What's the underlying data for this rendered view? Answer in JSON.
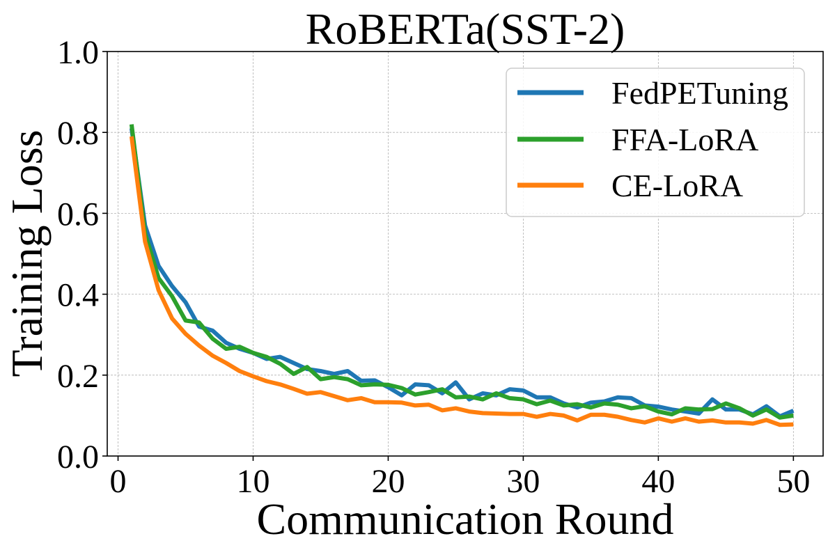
{
  "chart_data": {
    "type": "line",
    "title": "RoBERTa(SST-2)",
    "xlabel": "Communication Round",
    "ylabel": "Training Loss",
    "xlim": [
      -0.8,
      52.2
    ],
    "ylim": [
      0.0,
      1.0
    ],
    "xticks": [
      0,
      10,
      20,
      30,
      40,
      50
    ],
    "yticks": [
      0.0,
      0.2,
      0.4,
      0.6,
      0.8,
      1.0
    ],
    "xtick_labels": [
      "0",
      "10",
      "20",
      "30",
      "40",
      "50"
    ],
    "ytick_labels": [
      "0.0",
      "0.2",
      "0.4",
      "0.6",
      "0.8",
      "1.0"
    ],
    "grid": true,
    "legend_position": "top-right",
    "x": [
      1,
      2,
      3,
      4,
      5,
      6,
      7,
      8,
      9,
      10,
      11,
      12,
      13,
      14,
      15,
      16,
      17,
      18,
      19,
      20,
      21,
      22,
      23,
      24,
      25,
      26,
      27,
      28,
      29,
      30,
      31,
      32,
      33,
      34,
      35,
      36,
      37,
      38,
      39,
      40,
      41,
      42,
      43,
      44,
      45,
      46,
      47,
      48,
      49,
      50
    ],
    "series": [
      {
        "name": "FedPETuning",
        "color": "#1f77b4",
        "values": [
          0.81,
          0.57,
          0.47,
          0.42,
          0.38,
          0.32,
          0.31,
          0.28,
          0.265,
          0.255,
          0.24,
          0.245,
          0.23,
          0.215,
          0.21,
          0.203,
          0.21,
          0.186,
          0.187,
          0.17,
          0.15,
          0.177,
          0.175,
          0.155,
          0.182,
          0.14,
          0.155,
          0.15,
          0.165,
          0.162,
          0.145,
          0.145,
          0.13,
          0.12,
          0.132,
          0.135,
          0.145,
          0.143,
          0.125,
          0.122,
          0.115,
          0.11,
          0.105,
          0.14,
          0.115,
          0.115,
          0.103,
          0.123,
          0.098,
          0.112
        ]
      },
      {
        "name": "FFA-LoRA",
        "color": "#2ca02c",
        "values": [
          0.82,
          0.55,
          0.44,
          0.395,
          0.335,
          0.33,
          0.29,
          0.265,
          0.27,
          0.255,
          0.245,
          0.228,
          0.203,
          0.22,
          0.19,
          0.195,
          0.19,
          0.175,
          0.177,
          0.176,
          0.168,
          0.152,
          0.158,
          0.165,
          0.145,
          0.147,
          0.14,
          0.155,
          0.143,
          0.14,
          0.128,
          0.137,
          0.125,
          0.128,
          0.12,
          0.13,
          0.127,
          0.118,
          0.123,
          0.11,
          0.103,
          0.118,
          0.115,
          0.116,
          0.13,
          0.118,
          0.1,
          0.115,
          0.095,
          0.1
        ]
      },
      {
        "name": "CE-LoRA",
        "color": "#ff7f0e",
        "values": [
          0.79,
          0.53,
          0.41,
          0.34,
          0.302,
          0.273,
          0.248,
          0.23,
          0.21,
          0.197,
          0.185,
          0.177,
          0.166,
          0.154,
          0.158,
          0.148,
          0.138,
          0.143,
          0.133,
          0.133,
          0.132,
          0.125,
          0.127,
          0.113,
          0.118,
          0.11,
          0.106,
          0.105,
          0.104,
          0.104,
          0.097,
          0.104,
          0.1,
          0.088,
          0.102,
          0.102,
          0.097,
          0.089,
          0.083,
          0.093,
          0.085,
          0.093,
          0.085,
          0.088,
          0.083,
          0.083,
          0.08,
          0.089,
          0.077,
          0.078
        ]
      }
    ]
  }
}
